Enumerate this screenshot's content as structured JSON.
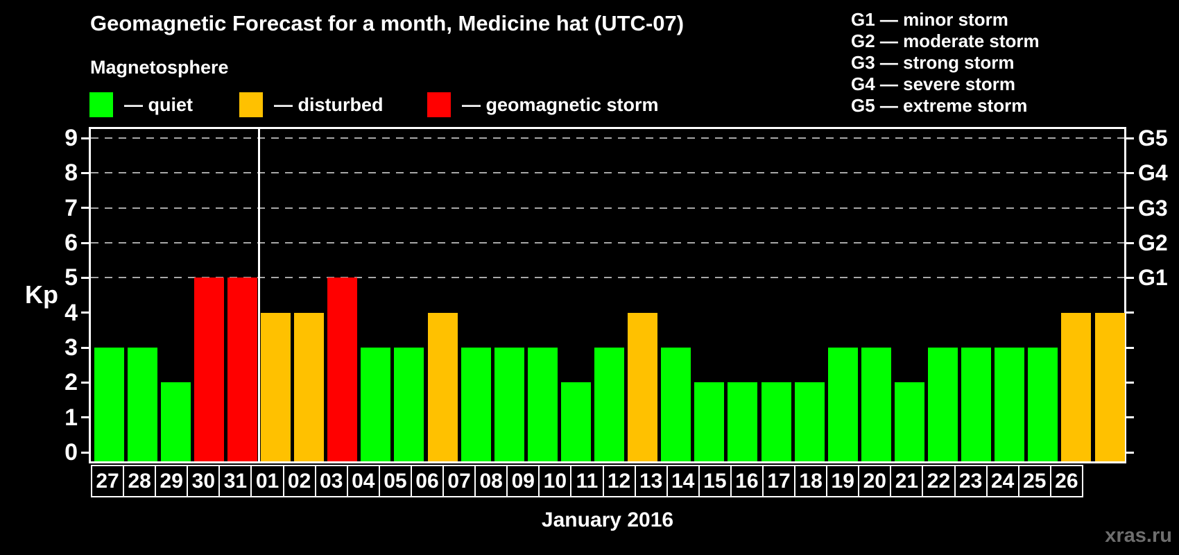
{
  "header": {
    "title": "Geomagnetic Forecast for a month, Medicine hat (UTC-07)",
    "subtitle": "Magnetosphere"
  },
  "colors": {
    "quiet": "#00FF00",
    "disturbed": "#FFC100",
    "storm": "#FF0000",
    "grid": "#A8A8A8",
    "axis": "#FFFFFF",
    "watermark": "#6E6E6E"
  },
  "legend": {
    "items": [
      {
        "label": "— quiet",
        "status": "quiet",
        "color": "#00FF00"
      },
      {
        "label": "— disturbed",
        "status": "disturbed",
        "color": "#FFC100"
      },
      {
        "label": "— geomagnetic storm",
        "status": "storm",
        "color": "#FF0000"
      }
    ]
  },
  "g_legend": {
    "items": [
      "G1 — minor storm",
      "G2 — moderate storm",
      "G3 — strong storm",
      "G4 — severe storm",
      "G5 — extreme storm"
    ]
  },
  "chart_data": {
    "type": "bar",
    "title": "Geomagnetic Forecast for a month, Medicine hat (UTC-07)",
    "ylabel": "Kp",
    "xlabel": "January 2016",
    "ylim": [
      0,
      9
    ],
    "yticks": [
      0,
      1,
      2,
      3,
      4,
      5,
      6,
      7,
      8,
      9
    ],
    "gridlines_at": [
      5,
      6,
      7,
      8,
      9
    ],
    "grid": "dashed-horizontal",
    "legend_position": "top-left",
    "right_axis": [
      {
        "value": 5,
        "label": "G1"
      },
      {
        "value": 6,
        "label": "G2"
      },
      {
        "value": 7,
        "label": "G3"
      },
      {
        "value": 8,
        "label": "G4"
      },
      {
        "value": 9,
        "label": "G5"
      }
    ],
    "categories": [
      "27",
      "28",
      "29",
      "30",
      "31",
      "01",
      "02",
      "03",
      "04",
      "05",
      "06",
      "07",
      "08",
      "09",
      "10",
      "11",
      "12",
      "13",
      "14",
      "15",
      "16",
      "17",
      "18",
      "19",
      "20",
      "21",
      "22",
      "23",
      "24",
      "25",
      "26"
    ],
    "values": [
      3,
      3,
      2,
      5,
      5,
      4,
      4,
      5,
      3,
      3,
      4,
      3,
      3,
      3,
      2,
      3,
      4,
      3,
      2,
      2,
      2,
      2,
      3,
      3,
      2,
      3,
      3,
      3,
      3,
      4,
      4
    ],
    "statuses": [
      "quiet",
      "quiet",
      "quiet",
      "storm",
      "storm",
      "disturbed",
      "disturbed",
      "storm",
      "quiet",
      "quiet",
      "disturbed",
      "quiet",
      "quiet",
      "quiet",
      "quiet",
      "quiet",
      "disturbed",
      "quiet",
      "quiet",
      "quiet",
      "quiet",
      "quiet",
      "quiet",
      "quiet",
      "quiet",
      "quiet",
      "quiet",
      "quiet",
      "quiet",
      "disturbed",
      "disturbed"
    ],
    "month_boundary_after_index": 4
  },
  "footer": {
    "xaxis_title": "January 2016",
    "watermark": "xras.ru"
  }
}
